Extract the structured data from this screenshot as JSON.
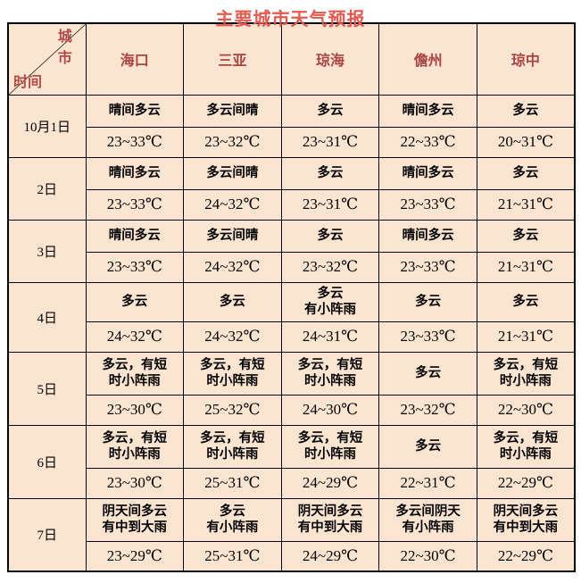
{
  "title": "主要城市天气预报",
  "corner": {
    "city_label": "城市",
    "time_label": "时间"
  },
  "colors": {
    "accent_title": "#e25a50",
    "header_text": "#a84442",
    "cell_background": "#fbe5d1",
    "grid_border": "#000000"
  },
  "cities": [
    "海口",
    "三亚",
    "琼海",
    "儋州",
    "琼中"
  ],
  "rows": [
    {
      "date": "10月1日",
      "cells": [
        {
          "weather": "晴间多云",
          "temp": "23~33℃"
        },
        {
          "weather": "多云间晴",
          "temp": "23~32℃"
        },
        {
          "weather": "多云",
          "temp": "23~31℃"
        },
        {
          "weather": "晴间多云",
          "temp": "22~33℃"
        },
        {
          "weather": "多云",
          "temp": "20~31℃"
        }
      ]
    },
    {
      "date": "2日",
      "cells": [
        {
          "weather": "晴间多云",
          "temp": "23~33℃"
        },
        {
          "weather": "多云间晴",
          "temp": "24~32℃"
        },
        {
          "weather": "多云",
          "temp": "23~31℃"
        },
        {
          "weather": "晴间多云",
          "temp": "23~33℃"
        },
        {
          "weather": "多云",
          "temp": "21~31℃"
        }
      ]
    },
    {
      "date": "3日",
      "cells": [
        {
          "weather": "晴间多云",
          "temp": "23~33℃"
        },
        {
          "weather": "多云间晴",
          "temp": "24~32℃"
        },
        {
          "weather": "多云",
          "temp": "23~32℃"
        },
        {
          "weather": "晴间多云",
          "temp": "23~33℃"
        },
        {
          "weather": "多云",
          "temp": "21~31℃"
        }
      ]
    },
    {
      "date": "4日",
      "cells": [
        {
          "weather": "多云",
          "temp": "24~32℃"
        },
        {
          "weather": "多云",
          "temp": "24~32℃"
        },
        {
          "weather": "多云\n有小阵雨",
          "temp": "24~31℃"
        },
        {
          "weather": "多云",
          "temp": "23~33℃"
        },
        {
          "weather": "多云",
          "temp": "21~31℃"
        }
      ]
    },
    {
      "date": "5日",
      "cells": [
        {
          "weather": "多云，有短\n时小阵雨",
          "temp": "23~30℃"
        },
        {
          "weather": "多云，有短\n时小阵雨",
          "temp": "25~32℃"
        },
        {
          "weather": "多云，有短\n时小阵雨",
          "temp": "24~30℃"
        },
        {
          "weather": "多云",
          "temp": "23~32℃"
        },
        {
          "weather": "多云，有短\n时小阵雨",
          "temp": "22~30℃"
        }
      ]
    },
    {
      "date": "6日",
      "cells": [
        {
          "weather": "多云，有短\n时小阵雨",
          "temp": "23~30℃"
        },
        {
          "weather": "多云，有短\n时小阵雨",
          "temp": "25~31℃"
        },
        {
          "weather": "多云，有短\n时小阵雨",
          "temp": "24~29℃"
        },
        {
          "weather": "多云",
          "temp": "22~31℃"
        },
        {
          "weather": "多云，有短\n时小阵雨",
          "temp": "22~29℃"
        }
      ]
    },
    {
      "date": "7日",
      "cells": [
        {
          "weather": "阴天间多云\n有中到大雨",
          "temp": "23~29℃"
        },
        {
          "weather": "多云\n有小阵雨",
          "temp": "25~31℃"
        },
        {
          "weather": "阴天间多云\n有中到大雨",
          "temp": "24~29℃"
        },
        {
          "weather": "多云间阴天\n有小阵雨",
          "temp": "22~30℃"
        },
        {
          "weather": "阴天间多云\n有中到大雨",
          "temp": "22~29℃"
        }
      ]
    }
  ]
}
